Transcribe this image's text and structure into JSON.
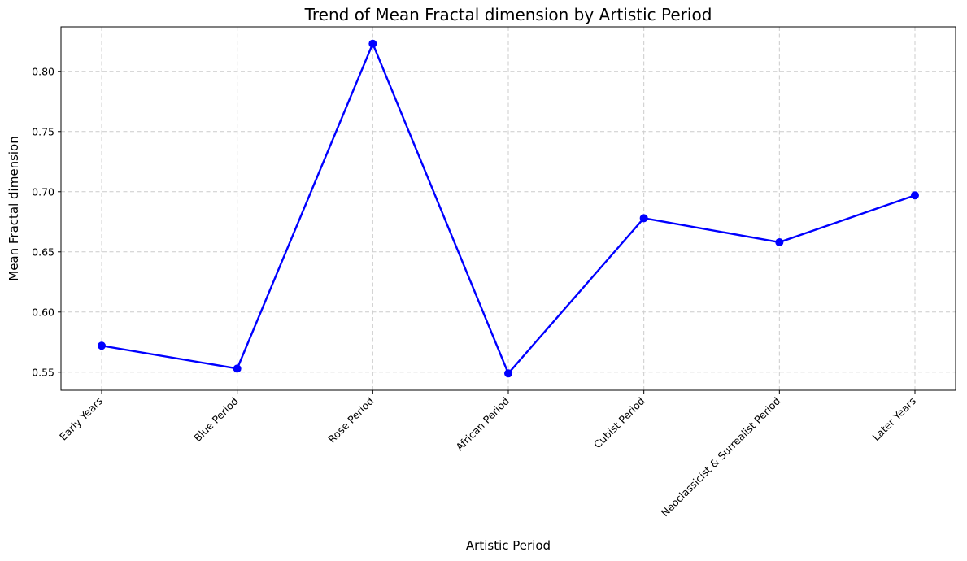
{
  "chart_data": {
    "type": "line",
    "title": "Trend of Mean Fractal dimension by Artistic Period",
    "xlabel": "Artistic Period",
    "ylabel": "Mean Fractal dimension",
    "categories": [
      "Early Years",
      "Blue Period",
      "Rose Period",
      "African Period",
      "Cubist Period",
      "Neoclassicist & Surrealist Period",
      "Later Years"
    ],
    "series": [
      {
        "values": [
          0.572,
          0.553,
          0.823,
          0.549,
          0.678,
          0.658,
          0.697
        ],
        "color": "#0000ff",
        "marker": "circle"
      }
    ],
    "ylim": [
      0.535,
      0.837
    ],
    "yticks": [
      0.55,
      0.6,
      0.65,
      0.7,
      0.75,
      0.8
    ],
    "ytick_labels": [
      "0.55",
      "0.60",
      "0.65",
      "0.70",
      "0.75",
      "0.80"
    ],
    "grid": true,
    "x_tick_rotation": 45
  }
}
